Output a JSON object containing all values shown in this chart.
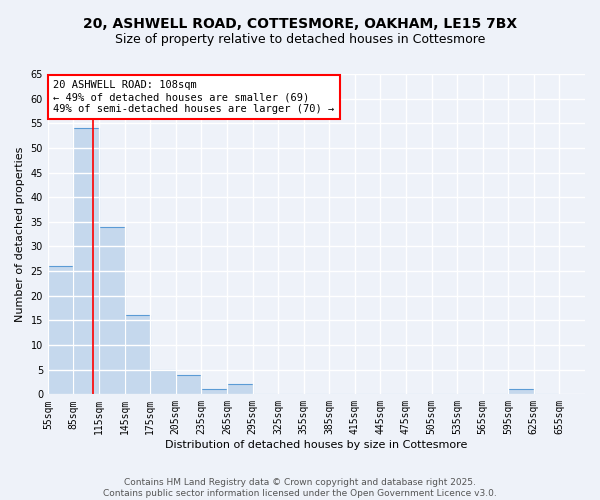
{
  "title_line1": "20, ASHWELL ROAD, COTTESMORE, OAKHAM, LE15 7BX",
  "title_line2": "Size of property relative to detached houses in Cottesmore",
  "xlabel": "Distribution of detached houses by size in Cottesmore",
  "ylabel": "Number of detached properties",
  "bin_edges": [
    55,
    85,
    115,
    145,
    175,
    205,
    235,
    265,
    295,
    325,
    355,
    385,
    415,
    445,
    475,
    505,
    535,
    565,
    595,
    625,
    655
  ],
  "counts": [
    26,
    54,
    34,
    16,
    5,
    4,
    1,
    2,
    0,
    0,
    0,
    0,
    0,
    0,
    0,
    0,
    0,
    0,
    1,
    0
  ],
  "bar_color": "#c5d8ed",
  "bar_edge_color": "#5b9bd5",
  "red_line_x": 108,
  "annotation_line1": "20 ASHWELL ROAD: 108sqm",
  "annotation_line2": "← 49% of detached houses are smaller (69)",
  "annotation_line3": "49% of semi-detached houses are larger (70) →",
  "annotation_box_color": "white",
  "annotation_box_edge_color": "red",
  "ylim": [
    0,
    65
  ],
  "yticks": [
    0,
    5,
    10,
    15,
    20,
    25,
    30,
    35,
    40,
    45,
    50,
    55,
    60,
    65
  ],
  "footer_line1": "Contains HM Land Registry data © Crown copyright and database right 2025.",
  "footer_line2": "Contains public sector information licensed under the Open Government Licence v3.0.",
  "background_color": "#eef2f9",
  "grid_color": "white",
  "title_fontsize": 10,
  "subtitle_fontsize": 9,
  "axis_label_fontsize": 8,
  "tick_fontsize": 7,
  "annotation_fontsize": 7.5,
  "footer_fontsize": 6.5
}
